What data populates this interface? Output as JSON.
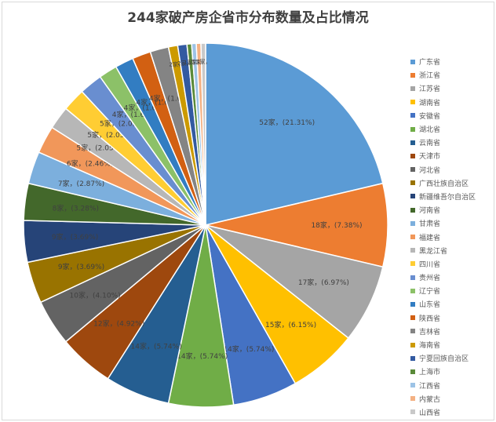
{
  "chart_data": {
    "type": "pie",
    "title": "244家破产房企省市分布数量及占比情况",
    "legend_position": "right",
    "categories": [
      "广东省",
      "浙江省",
      "江苏省",
      "湖南省",
      "安徽省",
      "湖北省",
      "云南省",
      "天津市",
      "河北省",
      "广西壮族自治区",
      "新疆维吾尔自治区",
      "河南省",
      "甘肃省",
      "福建省",
      "黑龙江省",
      "四川省",
      "贵州省",
      "辽宁省",
      "山东省",
      "陕西省",
      "吉林省",
      "海南省",
      "宁夏回族自治区",
      "上海市",
      "江西省",
      "内蒙古",
      "山西省"
    ],
    "values": [
      52,
      18,
      17,
      15,
      14,
      14,
      14,
      12,
      10,
      9,
      9,
      8,
      7,
      6,
      5,
      5,
      5,
      4,
      4,
      4,
      4,
      2,
      2,
      1,
      1,
      1,
      1
    ],
    "data_labels": [
      "52家，(21.31%)",
      "18家，(7.38%)",
      "17家，(6.97%)",
      "15家，(6.15%)",
      "14家，(5.74%)",
      "14家，(5.74%)",
      "14家，(5.74%)",
      "12家，(4.92%)",
      "10家，(4.10%)",
      "9家，(3.69%)",
      "9家，(3.69%)",
      "8家，(3.28%)",
      "7家，(2.87%)",
      "6家，(2.46%)",
      "5家，(2.05%)",
      "5家，(2.05%)",
      "5家，(2.05%)",
      "4家，(1.64%)",
      "4家，(1.64%)",
      "4家，(1.64%)",
      "4家，(1.64%)",
      "2家，",
      "2家，",
      "1家，",
      "1家，",
      "1家，",
      "1家，"
    ],
    "colors": [
      "#5B9BD5",
      "#ED7D31",
      "#A5A5A5",
      "#FFC000",
      "#4472C4",
      "#70AD47",
      "#255E91",
      "#9E480E",
      "#636363",
      "#997300",
      "#264478",
      "#43682B",
      "#7CAFDD",
      "#F1975A",
      "#B7B7B7",
      "#FFCD33",
      "#698ED0",
      "#8CC168",
      "#327DC2",
      "#D26012",
      "#848484",
      "#CC9A00",
      "#335AA1",
      "#5A8A39",
      "#9DC3E6",
      "#F4B183",
      "#C9C9C9"
    ]
  }
}
